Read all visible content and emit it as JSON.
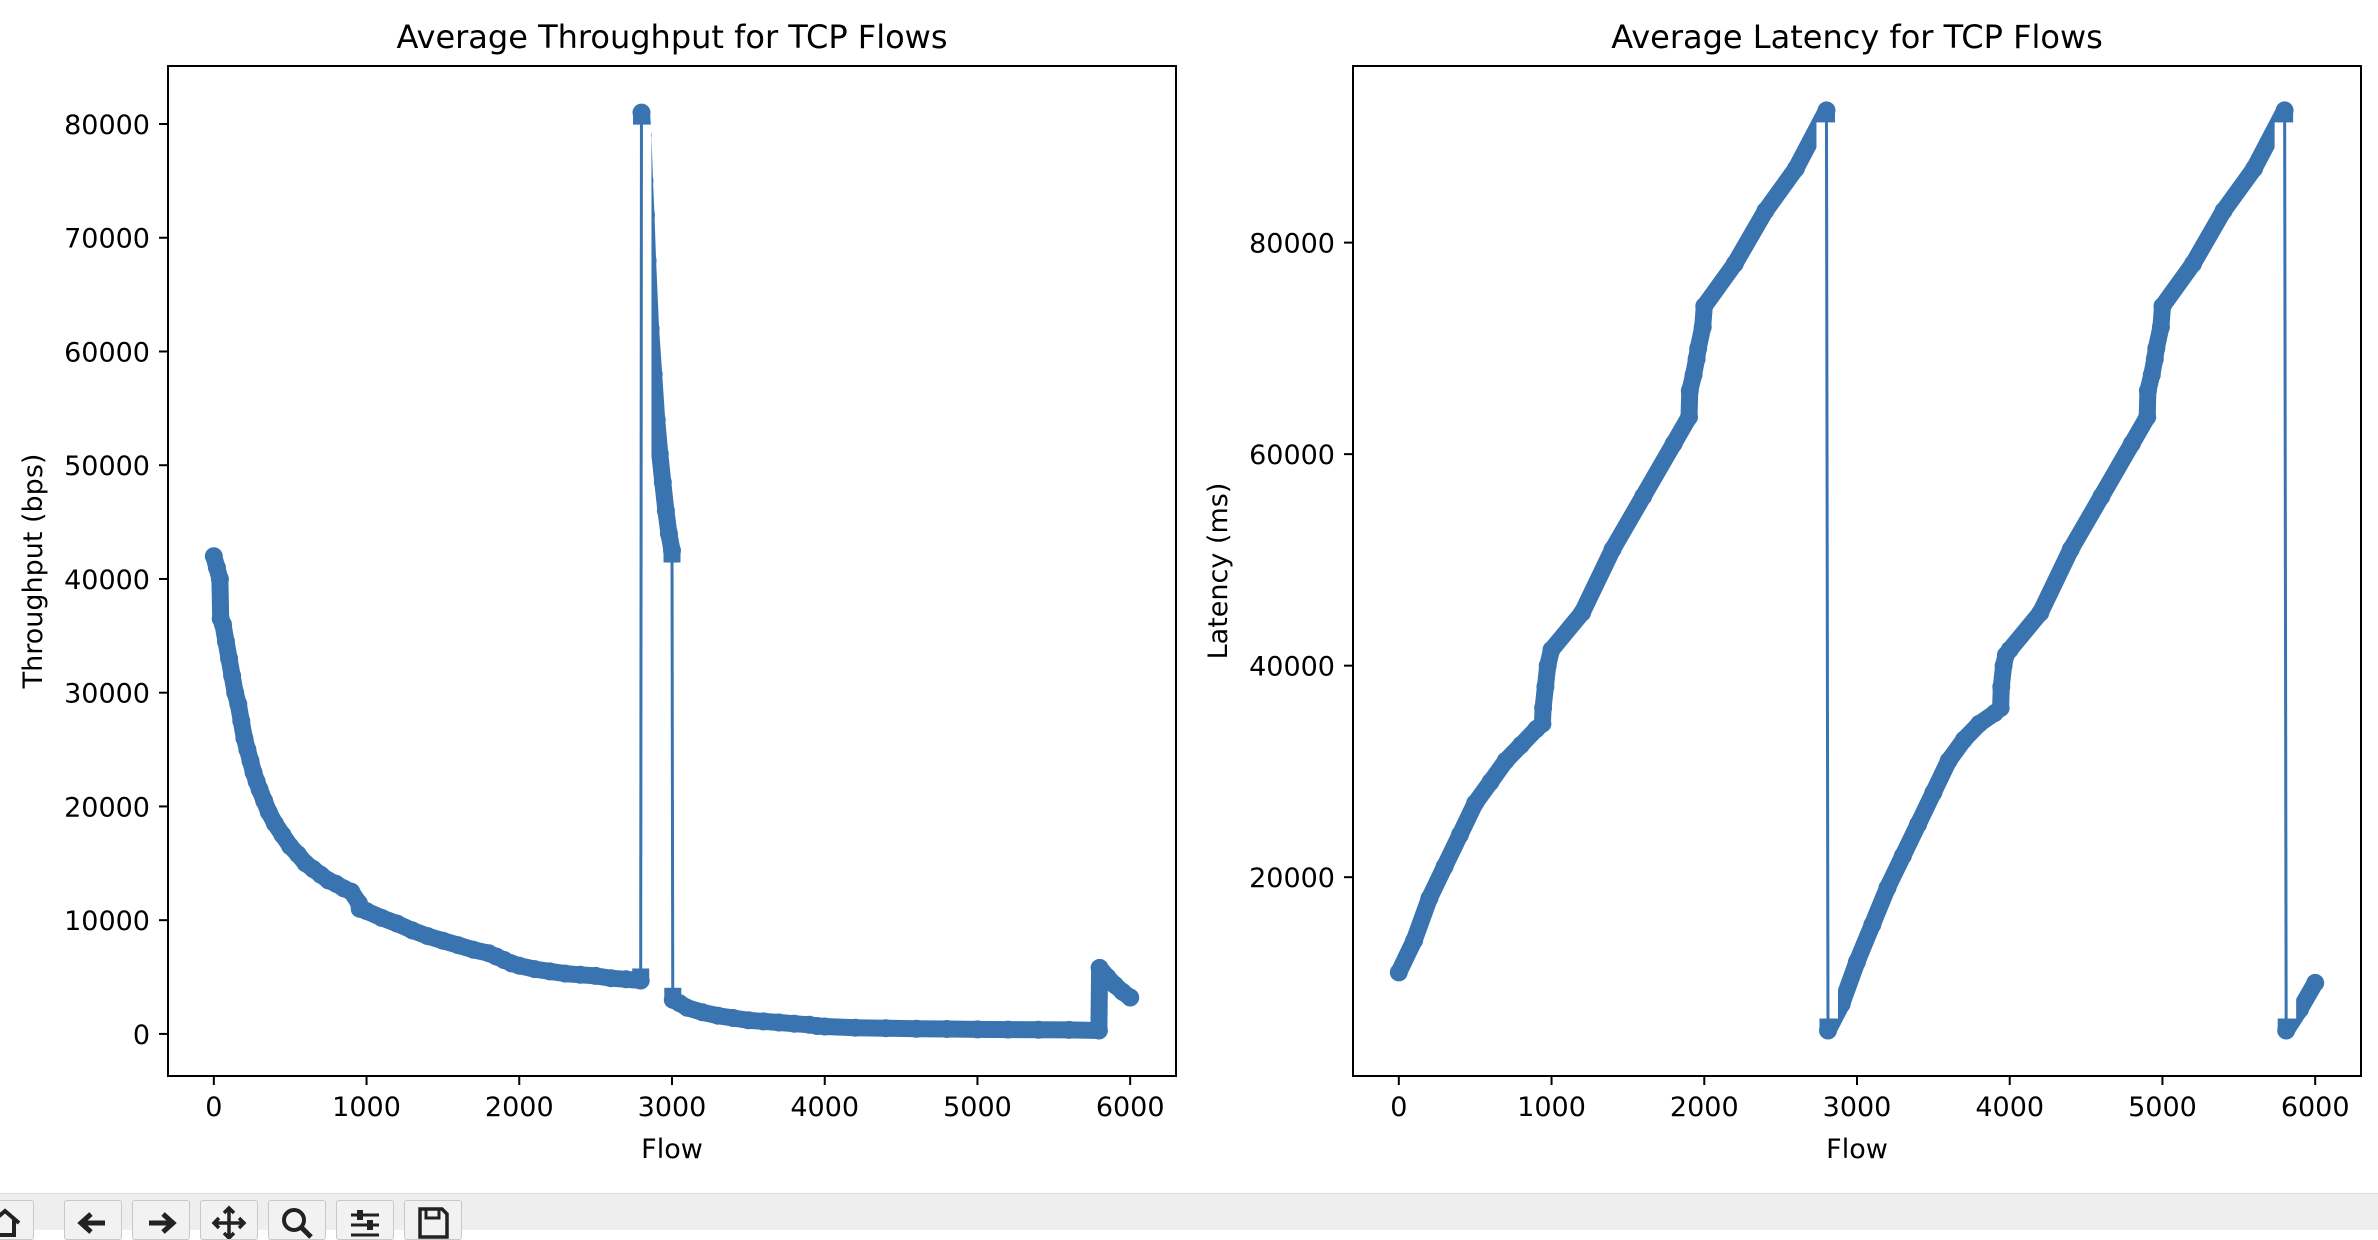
{
  "colors": {
    "series": "#3a74b0",
    "axes": "#000000",
    "toolbar_bg": "#eeeeee"
  },
  "chart_data": [
    {
      "type": "line",
      "markers": true,
      "title": "Average Throughput for TCP Flows",
      "xlabel": "Flow",
      "ylabel": "Throughput (bps)",
      "xlim": [
        -300,
        6300
      ],
      "ylim": [
        -3700,
        85100
      ],
      "xticks": [
        0,
        1000,
        2000,
        3000,
        4000,
        5000,
        6000
      ],
      "yticks": [
        0,
        10000,
        20000,
        30000,
        40000,
        50000,
        60000,
        70000,
        80000
      ],
      "grid": false,
      "series": [
        {
          "x": [
            0,
            20,
            40,
            45,
            60,
            80,
            100,
            120,
            140,
            160,
            180,
            200,
            220,
            240,
            260,
            280,
            300,
            330,
            360,
            400,
            450,
            500,
            550,
            600,
            650,
            700,
            750,
            800,
            850,
            900,
            950,
            955,
            1000,
            1100,
            1200,
            1300,
            1400,
            1500,
            1600,
            1700,
            1800,
            1850,
            1900,
            1950,
            2000,
            2100,
            2200,
            2300,
            2400,
            2500,
            2600,
            2700,
            2795,
            2800,
            2810,
            2820,
            2830,
            2840,
            2860,
            2880,
            2900,
            2920,
            2940,
            2960,
            2980,
            3000,
            3005,
            3050,
            3100,
            3200,
            3300,
            3400,
            3500,
            3600,
            3700,
            3800,
            3900,
            3950,
            4000,
            4200,
            4400,
            4600,
            4800,
            5000,
            5200,
            5400,
            5600,
            5795,
            5800,
            5850,
            5900,
            5950,
            6000
          ],
          "y": [
            42000,
            41000,
            40000,
            36500,
            36000,
            34500,
            33000,
            31500,
            30000,
            29000,
            27500,
            26000,
            25000,
            24000,
            23000,
            22200,
            21500,
            20500,
            19500,
            18500,
            17500,
            16500,
            15800,
            15000,
            14500,
            14000,
            13500,
            13200,
            12800,
            12500,
            11500,
            11000,
            10800,
            10200,
            9700,
            9100,
            8600,
            8200,
            7800,
            7400,
            7100,
            6800,
            6500,
            6200,
            6000,
            5700,
            5500,
            5300,
            5200,
            5100,
            4900,
            4800,
            4700,
            81000,
            79000,
            75000,
            72000,
            68000,
            62000,
            58000,
            54000,
            51000,
            48500,
            46000,
            44000,
            42500,
            3000,
            2700,
            2300,
            1900,
            1600,
            1400,
            1200,
            1100,
            1000,
            900,
            800,
            700,
            650,
            550,
            500,
            450,
            430,
            400,
            380,
            360,
            350,
            300,
            5800,
            5000,
            4300,
            3700,
            3200
          ]
        }
      ]
    },
    {
      "type": "line",
      "markers": true,
      "title": "Average Latency for TCP Flows",
      "xlabel": "Flow",
      "ylabel": "Latency (ms)",
      "xlim": [
        -300,
        6300
      ],
      "ylim": [
        1200,
        96700
      ],
      "xticks": [
        0,
        1000,
        2000,
        3000,
        4000,
        5000,
        6000
      ],
      "yticks": [
        20000,
        40000,
        60000,
        80000
      ],
      "grid": false,
      "series": [
        {
          "x": [
            0,
            100,
            200,
            300,
            400,
            500,
            600,
            700,
            800,
            900,
            940,
            945,
            960,
            975,
            1000,
            1200,
            1400,
            1600,
            1800,
            1900,
            1905,
            1930,
            1950,
            1960,
            1990,
            2000,
            2200,
            2400,
            2600,
            2800,
            2810,
            2900,
            3000,
            3100,
            3200,
            3300,
            3400,
            3500,
            3600,
            3700,
            3800,
            3900,
            3940,
            3945,
            3960,
            3975,
            4000,
            4200,
            4400,
            4600,
            4800,
            4900,
            4905,
            4930,
            4950,
            4960,
            4990,
            5000,
            5200,
            5400,
            5600,
            5800,
            5810,
            5900,
            6000
          ],
          "y": [
            11000,
            14000,
            18000,
            21000,
            24000,
            27000,
            29000,
            31000,
            32500,
            34000,
            34500,
            36000,
            38000,
            40000,
            41500,
            45000,
            51000,
            56000,
            61000,
            63500,
            66000,
            67500,
            69000,
            70000,
            72000,
            74000,
            78000,
            83000,
            87000,
            92500,
            5500,
            8000,
            12000,
            15500,
            19000,
            22000,
            25000,
            28000,
            31000,
            33000,
            34500,
            35500,
            36000,
            38000,
            40000,
            41000,
            41500,
            45000,
            51000,
            56000,
            61000,
            63500,
            66000,
            67500,
            69000,
            70000,
            72000,
            74000,
            78000,
            83000,
            87000,
            92500,
            5500,
            7500,
            10000
          ]
        }
      ]
    }
  ]
}
